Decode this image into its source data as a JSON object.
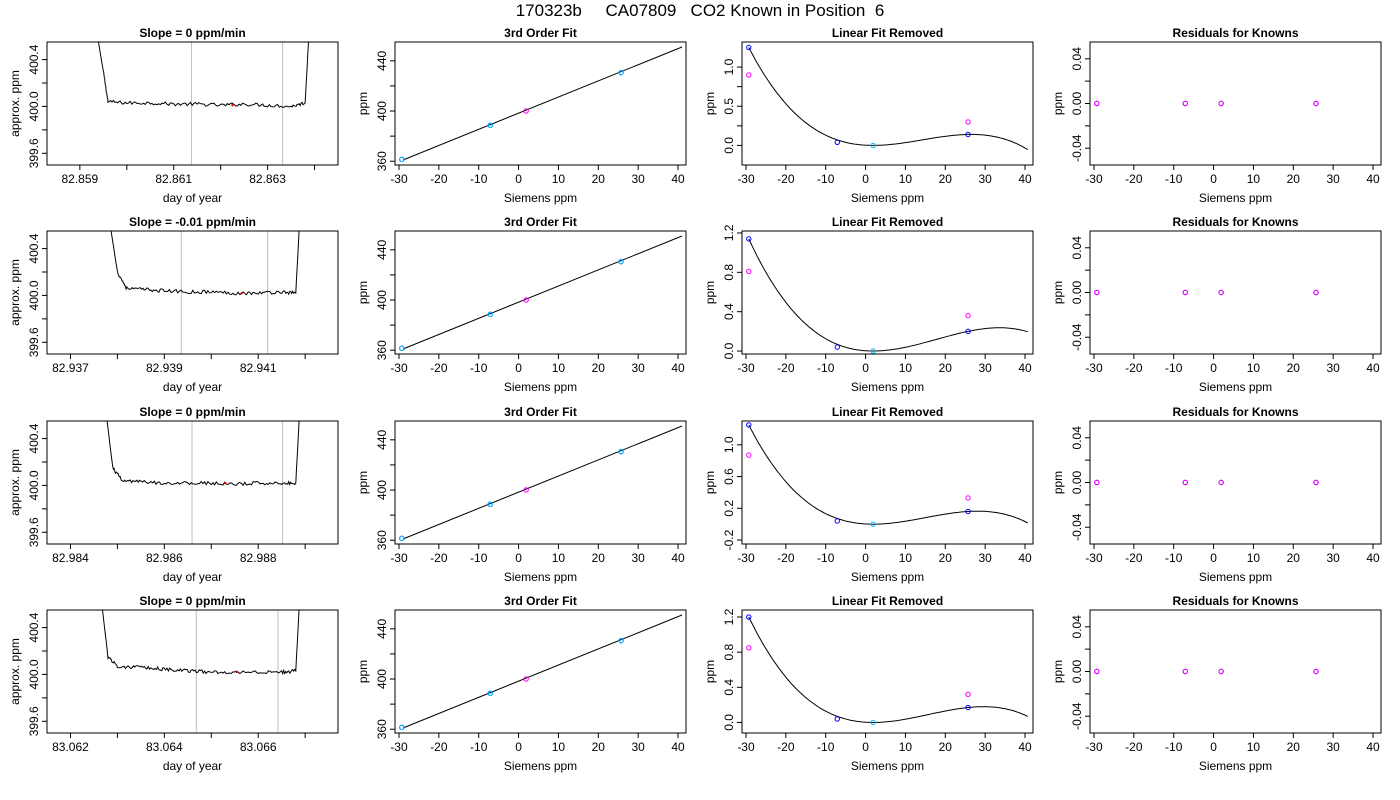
{
  "figure": {
    "title": "170323b     CA07809   CO2 Known in Position  6",
    "colors": {
      "line": "#000000",
      "vline": "#bebebe",
      "blue": "#0000ff",
      "magenta": "#ff00ff",
      "cyan": "#00bfff",
      "red": "#ff0000"
    }
  },
  "chart_data": [
    {
      "type": "line",
      "title": "Slope =  0  ppm/min",
      "xlabel": "day of year",
      "ylabel": "approx. ppm",
      "xlim": [
        82.8583,
        82.8645
      ],
      "ylim": [
        399.5,
        400.55
      ],
      "xticks": [
        82.859,
        82.861,
        82.863
      ],
      "yticks": [
        399.6,
        400.0,
        400.4
      ],
      "vlines": [
        82.86138,
        82.86332
      ],
      "x": [
        82.859,
        82.8595,
        82.8596,
        82.86,
        82.8605,
        82.861,
        82.8615,
        82.862,
        82.8625,
        82.863,
        82.8635,
        82.8638,
        82.864
      ],
      "y": [
        401.5,
        400.3,
        400.04,
        400.03,
        400.03,
        400.02,
        400.02,
        400.01,
        400.02,
        400.01,
        400.0,
        400.03,
        401.5
      ],
      "markers": [
        {
          "x": 82.86225,
          "y": 400.01,
          "color": "red"
        }
      ]
    },
    {
      "type": "scatter",
      "title": "3rd Order Fit",
      "xlabel": "Siemens ppm",
      "ylabel": "ppm",
      "xlim": [
        -31,
        42
      ],
      "ylim": [
        357,
        455
      ],
      "xticks": [
        -30,
        -20,
        -10,
        0,
        10,
        20,
        30,
        40
      ],
      "yticks": [
        360,
        400,
        440
      ],
      "fit_line": [
        [
          -29,
          361
        ],
        [
          41,
          451
        ]
      ],
      "points": [
        {
          "x": -29.3,
          "y": 361.5,
          "color": "blue"
        },
        {
          "x": -29.3,
          "y": 361.5,
          "color": "cyan"
        },
        {
          "x": -7.1,
          "y": 388.6,
          "color": "blue"
        },
        {
          "x": -7.1,
          "y": 388.6,
          "color": "cyan"
        },
        {
          "x": 1.9,
          "y": 400.1,
          "color": "magenta"
        },
        {
          "x": 25.7,
          "y": 430.6,
          "color": "blue"
        },
        {
          "x": 25.7,
          "y": 430.6,
          "color": "cyan"
        }
      ]
    },
    {
      "type": "scatter",
      "title": "Linear Fit Removed",
      "xlabel": "Siemens ppm",
      "ylabel": "ppm",
      "xlim": [
        -31,
        42
      ],
      "ylim": [
        -0.25,
        1.32
      ],
      "xticks": [
        -30,
        -20,
        -10,
        0,
        10,
        20,
        30,
        40
      ],
      "yticks": [
        0.0,
        0.5,
        1.0
      ],
      "curve": {
        "x_points": [
          -29.3,
          1.9,
          25.7
        ],
        "y_points": [
          1.25,
          0.0,
          0.14
        ],
        "min_at": 1.9,
        "x_end": 41
      },
      "points": [
        {
          "x": -29.3,
          "y": 1.25,
          "color": "blue"
        },
        {
          "x": -29.3,
          "y": 0.9,
          "color": "magenta"
        },
        {
          "x": -7.1,
          "y": 0.04,
          "color": "blue"
        },
        {
          "x": 1.9,
          "y": 0.0,
          "color": "cyan"
        },
        {
          "x": 25.7,
          "y": 0.14,
          "color": "blue"
        },
        {
          "x": 25.7,
          "y": 0.3,
          "color": "magenta"
        }
      ]
    },
    {
      "type": "scatter",
      "title": "Residuals for Knowns",
      "xlabel": "Siemens ppm",
      "ylabel": "ppm",
      "xlim": [
        -31,
        42
      ],
      "ylim": [
        -0.055,
        0.055
      ],
      "xticks": [
        -30,
        -20,
        -10,
        0,
        10,
        20,
        30,
        40
      ],
      "yticks": [
        -0.04,
        0.0,
        0.04
      ],
      "points": [
        {
          "x": -29.3,
          "y": 0.0,
          "color": "blue"
        },
        {
          "x": -7.1,
          "y": 0.0,
          "color": "blue"
        },
        {
          "x": 1.9,
          "y": 0.0,
          "color": "blue"
        },
        {
          "x": 25.7,
          "y": 0.0,
          "color": "blue"
        },
        {
          "x": -29.3,
          "y": 0.0,
          "color": "magenta"
        },
        {
          "x": -7.1,
          "y": 0.0,
          "color": "magenta"
        },
        {
          "x": 1.9,
          "y": 0.0,
          "color": "magenta"
        },
        {
          "x": 25.7,
          "y": 0.0,
          "color": "magenta"
        }
      ]
    },
    {
      "type": "line",
      "title": "Slope =  -0.01  ppm/min",
      "xlabel": "day of year",
      "ylabel": "approx. ppm",
      "xlim": [
        82.9365,
        82.9427
      ],
      "ylim": [
        399.5,
        400.55
      ],
      "xticks": [
        82.937,
        82.939,
        82.941
      ],
      "yticks": [
        399.6,
        400.0,
        400.4
      ],
      "vlines": [
        82.93936,
        82.9412
      ],
      "x": [
        82.9375,
        82.938,
        82.9382,
        82.9386,
        82.939,
        82.9395,
        82.94,
        82.9405,
        82.941,
        82.9415,
        82.9418,
        82.942
      ],
      "y": [
        401.5,
        400.2,
        400.06,
        400.05,
        400.04,
        400.03,
        400.03,
        400.02,
        400.02,
        400.03,
        400.02,
        401.5
      ],
      "markers": [
        {
          "x": 82.94065,
          "y": 400.02,
          "color": "red"
        }
      ]
    },
    {
      "type": "scatter",
      "title": "3rd Order Fit",
      "xlabel": "Siemens ppm",
      "ylabel": "ppm",
      "xlim": [
        -31,
        42
      ],
      "ylim": [
        357,
        455
      ],
      "xticks": [
        -30,
        -20,
        -10,
        0,
        10,
        20,
        30,
        40
      ],
      "yticks": [
        360,
        400,
        440
      ],
      "fit_line": [
        [
          -29,
          361
        ],
        [
          41,
          451
        ]
      ],
      "points": [
        {
          "x": -29.3,
          "y": 361.5,
          "color": "blue"
        },
        {
          "x": -29.3,
          "y": 361.5,
          "color": "cyan"
        },
        {
          "x": -7.1,
          "y": 388.6,
          "color": "blue"
        },
        {
          "x": -7.1,
          "y": 388.6,
          "color": "cyan"
        },
        {
          "x": 1.9,
          "y": 400.1,
          "color": "magenta"
        },
        {
          "x": 25.7,
          "y": 430.6,
          "color": "blue"
        },
        {
          "x": 25.7,
          "y": 430.6,
          "color": "cyan"
        }
      ]
    },
    {
      "type": "scatter",
      "title": "Linear Fit Removed",
      "xlabel": "Siemens ppm",
      "ylabel": "ppm",
      "xlim": [
        -31,
        42
      ],
      "ylim": [
        -0.03,
        1.22
      ],
      "xticks": [
        -30,
        -20,
        -10,
        0,
        10,
        20,
        30,
        40
      ],
      "yticks": [
        0.0,
        0.4,
        0.8,
        1.2
      ],
      "curve": {
        "x_points": [
          -29.3,
          1.9,
          25.7
        ],
        "y_points": [
          1.14,
          0.0,
          0.2
        ],
        "min_at": 1.9,
        "x_end": 41
      },
      "points": [
        {
          "x": -29.3,
          "y": 1.14,
          "color": "blue"
        },
        {
          "x": -29.3,
          "y": 0.81,
          "color": "magenta"
        },
        {
          "x": -7.1,
          "y": 0.04,
          "color": "blue"
        },
        {
          "x": 1.9,
          "y": 0.0,
          "color": "cyan"
        },
        {
          "x": 25.7,
          "y": 0.2,
          "color": "blue"
        },
        {
          "x": 25.7,
          "y": 0.36,
          "color": "magenta"
        }
      ]
    },
    {
      "type": "scatter",
      "title": "Residuals for Knowns",
      "xlabel": "Siemens ppm",
      "ylabel": "ppm",
      "xlim": [
        -31,
        42
      ],
      "ylim": [
        -0.055,
        0.055
      ],
      "xticks": [
        -30,
        -20,
        -10,
        0,
        10,
        20,
        30,
        40
      ],
      "yticks": [
        -0.04,
        0.0,
        0.04
      ],
      "points": [
        {
          "x": -29.3,
          "y": 0.0,
          "color": "blue"
        },
        {
          "x": -7.1,
          "y": 0.0,
          "color": "blue"
        },
        {
          "x": 1.9,
          "y": 0.0,
          "color": "blue"
        },
        {
          "x": 25.7,
          "y": 0.0,
          "color": "blue"
        },
        {
          "x": -29.3,
          "y": 0.0,
          "color": "magenta"
        },
        {
          "x": -7.1,
          "y": 0.0,
          "color": "magenta"
        },
        {
          "x": 1.9,
          "y": 0.0,
          "color": "magenta"
        },
        {
          "x": 25.7,
          "y": 0.0,
          "color": "magenta"
        }
      ]
    },
    {
      "type": "line",
      "title": "Slope =  0  ppm/min",
      "xlabel": "day of year",
      "ylabel": "approx. ppm",
      "xlim": [
        82.9835,
        82.9897
      ],
      "ylim": [
        399.5,
        400.55
      ],
      "xticks": [
        82.984,
        82.986,
        82.988
      ],
      "yticks": [
        399.6,
        400.0,
        400.4
      ],
      "vlines": [
        82.98659,
        82.98852
      ],
      "x": [
        82.9845,
        82.9849,
        82.9851,
        82.9855,
        82.986,
        82.9865,
        82.987,
        82.9875,
        82.988,
        82.9885,
        82.9888,
        82.989
      ],
      "y": [
        401.5,
        400.15,
        400.04,
        400.03,
        400.02,
        400.02,
        400.02,
        400.01,
        400.02,
        400.02,
        400.02,
        401.5
      ],
      "markers": [
        {
          "x": 82.9873,
          "y": 400.02,
          "color": "red"
        }
      ]
    },
    {
      "type": "scatter",
      "title": "3rd Order Fit",
      "xlabel": "Siemens ppm",
      "ylabel": "ppm",
      "xlim": [
        -31,
        42
      ],
      "ylim": [
        357,
        455
      ],
      "xticks": [
        -30,
        -20,
        -10,
        0,
        10,
        20,
        30,
        40
      ],
      "yticks": [
        360,
        400,
        440
      ],
      "fit_line": [
        [
          -29,
          361
        ],
        [
          41,
          451
        ]
      ],
      "points": [
        {
          "x": -29.3,
          "y": 361.5,
          "color": "blue"
        },
        {
          "x": -29.3,
          "y": 361.5,
          "color": "cyan"
        },
        {
          "x": -7.1,
          "y": 388.6,
          "color": "blue"
        },
        {
          "x": -7.1,
          "y": 388.6,
          "color": "cyan"
        },
        {
          "x": 1.9,
          "y": 400.1,
          "color": "magenta"
        },
        {
          "x": 25.7,
          "y": 430.6,
          "color": "blue"
        },
        {
          "x": 25.7,
          "y": 430.6,
          "color": "cyan"
        }
      ]
    },
    {
      "type": "scatter",
      "title": "Linear Fit Removed",
      "xlabel": "Siemens ppm",
      "ylabel": "ppm",
      "xlim": [
        -31,
        42
      ],
      "ylim": [
        -0.25,
        1.3
      ],
      "xticks": [
        -30,
        -20,
        -10,
        0,
        10,
        20,
        30,
        40
      ],
      "yticks": [
        -0.2,
        0.2,
        0.6,
        1.0
      ],
      "curve": {
        "x_points": [
          -29.3,
          1.9,
          25.7
        ],
        "y_points": [
          1.25,
          0.0,
          0.16
        ],
        "min_at": 1.9,
        "x_end": 41
      },
      "points": [
        {
          "x": -29.3,
          "y": 1.25,
          "color": "blue"
        },
        {
          "x": -29.3,
          "y": 0.87,
          "color": "magenta"
        },
        {
          "x": -7.1,
          "y": 0.04,
          "color": "blue"
        },
        {
          "x": 1.9,
          "y": 0.0,
          "color": "cyan"
        },
        {
          "x": 25.7,
          "y": 0.16,
          "color": "blue"
        },
        {
          "x": 25.7,
          "y": 0.33,
          "color": "magenta"
        }
      ]
    },
    {
      "type": "scatter",
      "title": "Residuals for Knowns",
      "xlabel": "Siemens ppm",
      "ylabel": "ppm",
      "xlim": [
        -31,
        42
      ],
      "ylim": [
        -0.055,
        0.055
      ],
      "xticks": [
        -30,
        -20,
        -10,
        0,
        10,
        20,
        30,
        40
      ],
      "yticks": [
        -0.04,
        0.0,
        0.04
      ],
      "points": [
        {
          "x": -29.3,
          "y": 0.0,
          "color": "blue"
        },
        {
          "x": -7.1,
          "y": 0.0,
          "color": "blue"
        },
        {
          "x": 1.9,
          "y": 0.0,
          "color": "blue"
        },
        {
          "x": 25.7,
          "y": 0.0,
          "color": "blue"
        },
        {
          "x": -29.3,
          "y": 0.0,
          "color": "magenta"
        },
        {
          "x": -7.1,
          "y": 0.0,
          "color": "magenta"
        },
        {
          "x": 1.9,
          "y": 0.0,
          "color": "magenta"
        },
        {
          "x": 25.7,
          "y": 0.0,
          "color": "magenta"
        }
      ]
    },
    {
      "type": "line",
      "title": "Slope =  0  ppm/min",
      "xlabel": "day of year",
      "ylabel": "approx. ppm",
      "xlim": [
        83.0615,
        83.0677
      ],
      "ylim": [
        399.5,
        400.55
      ],
      "xticks": [
        83.062,
        83.064,
        83.066
      ],
      "yticks": [
        399.6,
        400.0,
        400.4
      ],
      "vlines": [
        83.06468,
        83.06642
      ],
      "x": [
        83.0624,
        83.0628,
        83.063,
        83.0634,
        83.0638,
        83.0642,
        83.0646,
        83.065,
        83.0655,
        83.066,
        83.0665,
        83.0668,
        83.067
      ],
      "y": [
        401.5,
        400.15,
        400.07,
        400.06,
        400.05,
        400.04,
        400.03,
        400.02,
        400.02,
        400.02,
        400.02,
        400.03,
        401.5
      ],
      "markers": [
        {
          "x": 83.06555,
          "y": 400.02,
          "color": "red"
        }
      ]
    },
    {
      "type": "scatter",
      "title": "3rd Order Fit",
      "xlabel": "Siemens ppm",
      "ylabel": "ppm",
      "xlim": [
        -31,
        42
      ],
      "ylim": [
        357,
        455
      ],
      "xticks": [
        -30,
        -20,
        -10,
        0,
        10,
        20,
        30,
        40
      ],
      "yticks": [
        360,
        400,
        440
      ],
      "fit_line": [
        [
          -29,
          361
        ],
        [
          41,
          451
        ]
      ],
      "points": [
        {
          "x": -29.3,
          "y": 361.5,
          "color": "blue"
        },
        {
          "x": -29.3,
          "y": 361.5,
          "color": "cyan"
        },
        {
          "x": -7.1,
          "y": 388.6,
          "color": "blue"
        },
        {
          "x": -7.1,
          "y": 388.6,
          "color": "cyan"
        },
        {
          "x": 1.9,
          "y": 400.1,
          "color": "magenta"
        },
        {
          "x": 25.7,
          "y": 430.6,
          "color": "blue"
        },
        {
          "x": 25.7,
          "y": 430.6,
          "color": "cyan"
        }
      ]
    },
    {
      "type": "scatter",
      "title": "Linear Fit Removed",
      "xlabel": "Siemens ppm",
      "ylabel": "ppm",
      "xlim": [
        -31,
        42
      ],
      "ylim": [
        -0.12,
        1.28
      ],
      "xticks": [
        -30,
        -20,
        -10,
        0,
        10,
        20,
        30,
        40
      ],
      "yticks": [
        0.0,
        0.4,
        0.8,
        1.2
      ],
      "curve": {
        "x_points": [
          -29.3,
          1.9,
          25.7
        ],
        "y_points": [
          1.2,
          0.0,
          0.17
        ],
        "min_at": 1.9,
        "x_end": 41
      },
      "points": [
        {
          "x": -29.3,
          "y": 1.2,
          "color": "blue"
        },
        {
          "x": -29.3,
          "y": 0.85,
          "color": "magenta"
        },
        {
          "x": -7.1,
          "y": 0.04,
          "color": "blue"
        },
        {
          "x": 1.9,
          "y": 0.0,
          "color": "cyan"
        },
        {
          "x": 25.7,
          "y": 0.17,
          "color": "blue"
        },
        {
          "x": 25.7,
          "y": 0.32,
          "color": "magenta"
        }
      ]
    },
    {
      "type": "scatter",
      "title": "Residuals for Knowns",
      "xlabel": "Siemens ppm",
      "ylabel": "ppm",
      "xlim": [
        -31,
        42
      ],
      "ylim": [
        -0.055,
        0.055
      ],
      "xticks": [
        -30,
        -20,
        -10,
        0,
        10,
        20,
        30,
        40
      ],
      "yticks": [
        -0.04,
        0.0,
        0.04
      ],
      "points": [
        {
          "x": -29.3,
          "y": 0.0,
          "color": "blue"
        },
        {
          "x": -7.1,
          "y": 0.0,
          "color": "blue"
        },
        {
          "x": 1.9,
          "y": 0.0,
          "color": "blue"
        },
        {
          "x": 25.7,
          "y": 0.0,
          "color": "blue"
        },
        {
          "x": -29.3,
          "y": 0.0,
          "color": "magenta"
        },
        {
          "x": -7.1,
          "y": 0.0,
          "color": "magenta"
        },
        {
          "x": 1.9,
          "y": 0.0,
          "color": "magenta"
        },
        {
          "x": 25.7,
          "y": 0.0,
          "color": "magenta"
        }
      ]
    }
  ]
}
